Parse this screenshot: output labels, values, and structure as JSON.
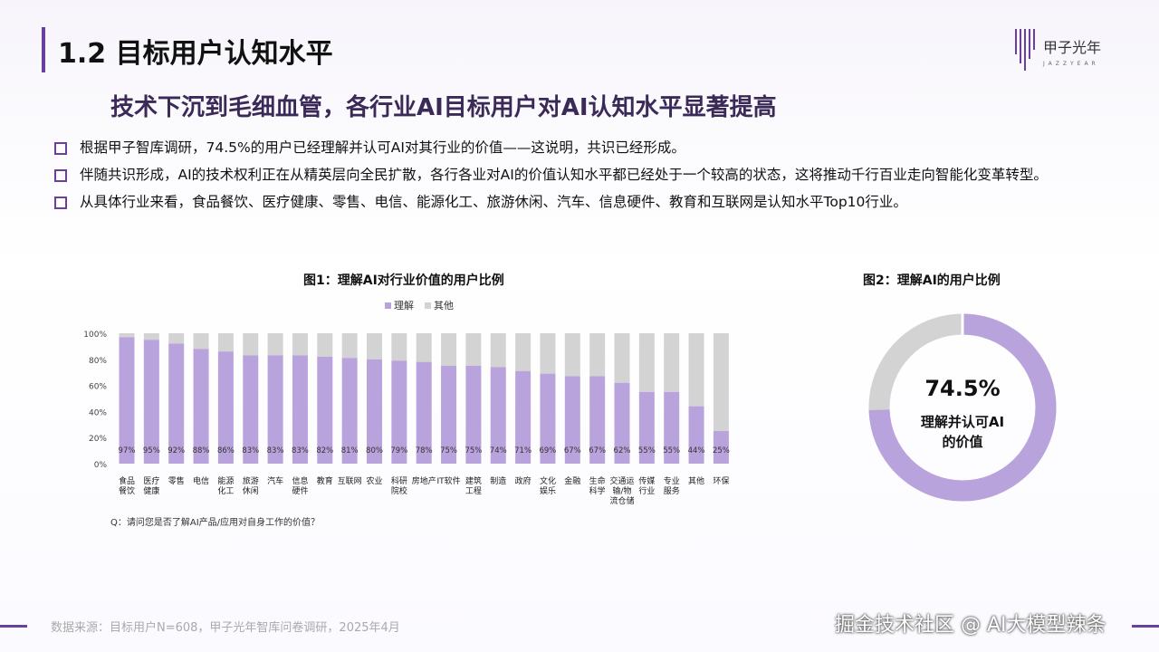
{
  "header": {
    "title": "1.2 目标用户认知水平",
    "logo_text": "甲子光年",
    "subtitle": "技术下沉到毛细血管，各行业AI目标用户对AI认知水平显著提高"
  },
  "bullets": [
    "根据甲子智库调研，74.5%的用户已经理解并认可AI对其行业的价值——这说明，共识已经形成。",
    "伴随共识形成，AI的技术权利正在从精英层向全民扩散，各行各业对AI的价值认知水平都已经处于一个较高的状态，这将推动千行百业走向智能化变革转型。",
    "从具体行业来看，食品餐饮、医疗健康、零售、电信、能源化工、旅游休闲、汽车、信息硬件、教育和互联网是认知水平Top10行业。"
  ],
  "colors": {
    "accent": "#6b3fa0",
    "understand": "#b9a3dc",
    "other": "#d3d3d3"
  },
  "chart_data": [
    {
      "type": "bar",
      "stacked": true,
      "title": "图1：理解AI对行业价值的用户比例",
      "legend": [
        "理解",
        "其他"
      ],
      "legend_position": "top",
      "categories": [
        "食品餐饮",
        "医疗健康",
        "零售",
        "电信",
        "能源化工",
        "旅游休闲",
        "汽车",
        "信息硬件",
        "教育",
        "互联网",
        "农业",
        "科研院校",
        "房地产",
        "IT软件",
        "建筑工程",
        "制造",
        "政府",
        "文化娱乐",
        "金融",
        "生命科学",
        "交通运输/物流仓储",
        "传媒行业",
        "专业服务",
        "其他",
        "环保"
      ],
      "category_labels": [
        [
          "食品",
          "餐饮"
        ],
        [
          "医疗",
          "健康"
        ],
        [
          "零售"
        ],
        [
          "电信"
        ],
        [
          "能源",
          "化工"
        ],
        [
          "旅游",
          "休闲"
        ],
        [
          "汽车"
        ],
        [
          "信息",
          "硬件"
        ],
        [
          "教育"
        ],
        [
          "互联网"
        ],
        [
          "农业"
        ],
        [
          "科研",
          "院校"
        ],
        [
          "房地产"
        ],
        [
          "IT软件"
        ],
        [
          "建筑",
          "工程"
        ],
        [
          "制造"
        ],
        [
          "政府"
        ],
        [
          "文化",
          "娱乐"
        ],
        [
          "金融"
        ],
        [
          "生命",
          "科学"
        ],
        [
          "交通运",
          "输/物",
          "流仓储"
        ],
        [
          "传媒",
          "行业"
        ],
        [
          "专业",
          "服务"
        ],
        [
          "其他"
        ],
        [
          "环保"
        ]
      ],
      "series": [
        {
          "name": "理解",
          "values": [
            97,
            95,
            92,
            88,
            86,
            83,
            83,
            83,
            82,
            81,
            80,
            79,
            78,
            75,
            75,
            74,
            71,
            69,
            67,
            67,
            62,
            55,
            55,
            44,
            25
          ]
        },
        {
          "name": "其他",
          "values": [
            3,
            5,
            8,
            12,
            14,
            17,
            17,
            17,
            18,
            19,
            20,
            21,
            22,
            25,
            25,
            26,
            29,
            31,
            33,
            33,
            38,
            45,
            45,
            56,
            75
          ]
        }
      ],
      "data_labels": [
        "97%",
        "95%",
        "92%",
        "88%",
        "86%",
        "83%",
        "83%",
        "83%",
        "82%",
        "81%",
        "80%",
        "79%",
        "78%",
        "75%",
        "75%",
        "74%",
        "71%",
        "69%",
        "67%",
        "67%",
        "62%",
        "55%",
        "55%",
        "44%",
        "25%"
      ],
      "yticks": [
        "0%",
        "20%",
        "40%",
        "60%",
        "80%",
        "100%"
      ],
      "ylim": [
        0,
        100
      ],
      "note": "Q：请问您是否了解AI产品/应用对自身工作的价值？"
    },
    {
      "type": "pie",
      "donut": true,
      "title": "图2：理解AI的用户比例",
      "values": [
        74.5,
        25.5
      ],
      "center_value": "74.5%",
      "center_label_lines": [
        "理解并认可AI",
        "的价值"
      ]
    }
  ],
  "footer": {
    "source": "数据来源：目标用户N=608，甲子光年智库问卷调研，2025年4月",
    "watermark": "掘金技术社区 @ AI大模型辣条"
  }
}
